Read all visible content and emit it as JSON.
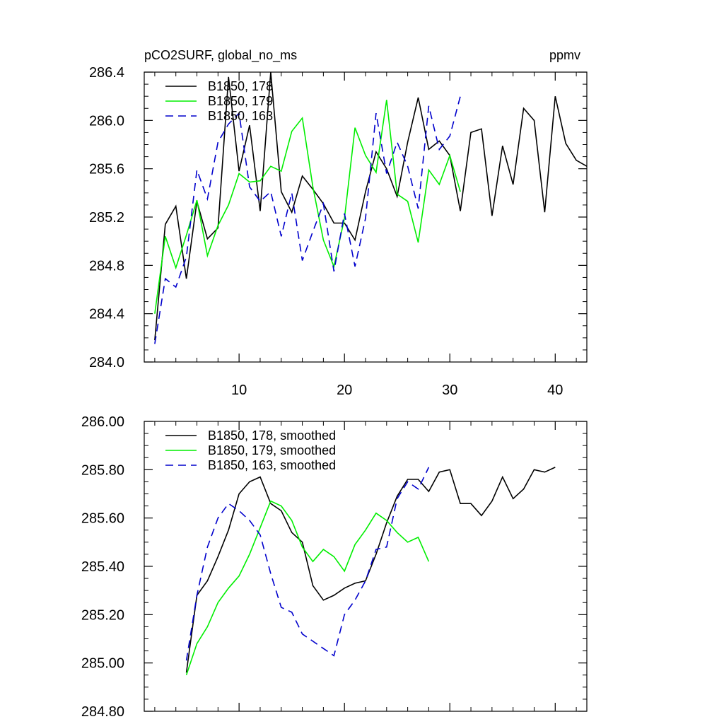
{
  "chart_data": [
    {
      "type": "line",
      "title": "pCO2SURF, global_no_ms",
      "units": "ppmv",
      "xlabel": "",
      "ylabel": "",
      "xlim": [
        1,
        43
      ],
      "ylim": [
        284.0,
        286.4
      ],
      "x_ticks": [
        10,
        20,
        30,
        40
      ],
      "x_tick_labels": [
        "10",
        "20",
        "30",
        "40"
      ],
      "y_ticks": [
        284.0,
        284.4,
        284.8,
        285.2,
        285.6,
        286.0,
        286.4
      ],
      "y_tick_labels": [
        "284.0",
        "284.4",
        "284.8",
        "285.2",
        "285.6",
        "286.0",
        "286.4"
      ],
      "legend_position": "top-left",
      "series": [
        {
          "name": "B1850, 178",
          "color": "#000000",
          "dash": "solid",
          "x": [
            2,
            3,
            4,
            5,
            6,
            7,
            8,
            9,
            10,
            11,
            12,
            13,
            14,
            15,
            16,
            17,
            18,
            19,
            20,
            21,
            22,
            23,
            24,
            25,
            26,
            27,
            28,
            29,
            30,
            31,
            32,
            33,
            34,
            35,
            36,
            37,
            38,
            39,
            40,
            41,
            42,
            43
          ],
          "values": [
            284.18,
            285.14,
            285.29,
            284.69,
            285.33,
            285.02,
            285.11,
            286.36,
            285.58,
            285.96,
            285.25,
            286.4,
            285.41,
            285.24,
            285.54,
            285.43,
            285.31,
            285.15,
            285.15,
            285.01,
            285.41,
            285.74,
            285.6,
            285.37,
            285.82,
            286.19,
            285.76,
            285.83,
            285.71,
            285.25,
            285.9,
            285.93,
            285.21,
            285.79,
            285.47,
            286.1,
            286.0,
            285.24,
            286.2,
            285.81,
            285.67,
            285.62
          ]
        },
        {
          "name": "B1850, 179",
          "color": "#00ee00",
          "dash": "solid",
          "x": [
            2,
            3,
            4,
            5,
            6,
            7,
            8,
            9,
            10,
            11,
            12,
            13,
            14,
            15,
            16,
            17,
            18,
            19,
            20,
            21,
            22,
            23,
            24,
            25,
            26,
            27,
            28,
            29,
            30,
            31
          ],
          "values": [
            284.4,
            285.04,
            284.78,
            285.05,
            285.34,
            284.88,
            285.13,
            285.3,
            285.56,
            285.49,
            285.5,
            285.62,
            285.58,
            285.91,
            286.02,
            285.45,
            285.01,
            284.79,
            285.19,
            285.94,
            285.71,
            285.57,
            286.17,
            285.39,
            285.33,
            284.99,
            285.59,
            285.47,
            285.71,
            285.41
          ]
        },
        {
          "name": "B1850, 163",
          "color": "#0000cc",
          "dash": "dashed",
          "x": [
            2,
            3,
            4,
            5,
            6,
            7,
            8,
            9,
            10,
            11,
            12,
            13,
            14,
            15,
            16,
            17,
            18,
            19,
            20,
            21,
            22,
            23,
            24,
            25,
            26,
            27,
            28,
            29,
            30,
            31
          ],
          "values": [
            284.15,
            284.69,
            284.62,
            284.87,
            285.59,
            285.35,
            285.82,
            285.97,
            286.06,
            285.45,
            285.33,
            285.41,
            285.04,
            285.4,
            284.84,
            285.08,
            285.31,
            284.75,
            285.23,
            284.79,
            285.19,
            286.06,
            285.56,
            285.82,
            285.62,
            285.27,
            286.12,
            285.76,
            285.87,
            286.2
          ]
        }
      ]
    },
    {
      "type": "line",
      "title": "",
      "xlabel": "",
      "ylabel": "",
      "xlim": [
        1,
        43
      ],
      "ylim": [
        284.8,
        286.0
      ],
      "x_ticks": [
        10,
        20,
        30,
        40
      ],
      "y_ticks": [
        284.8,
        285.0,
        285.2,
        285.4,
        285.6,
        285.8,
        286.0
      ],
      "y_tick_labels": [
        "284.80",
        "285.00",
        "285.20",
        "285.40",
        "285.60",
        "285.80",
        "286.00"
      ],
      "legend_position": "top-left",
      "series": [
        {
          "name": "B1850, 178, smoothed",
          "color": "#000000",
          "dash": "solid",
          "x": [
            5,
            6,
            7,
            8,
            9,
            10,
            11,
            12,
            13,
            14,
            15,
            16,
            17,
            18,
            19,
            20,
            21,
            22,
            23,
            24,
            25,
            26,
            27,
            28,
            29,
            30,
            31,
            32,
            33,
            34,
            35,
            36,
            37,
            38,
            39,
            40
          ],
          "values": [
            284.96,
            285.28,
            285.34,
            285.44,
            285.55,
            285.7,
            285.75,
            285.77,
            285.66,
            285.63,
            285.54,
            285.5,
            285.32,
            285.26,
            285.28,
            285.31,
            285.33,
            285.34,
            285.45,
            285.58,
            285.69,
            285.76,
            285.76,
            285.71,
            285.79,
            285.8,
            285.66,
            285.66,
            285.61,
            285.67,
            285.77,
            285.68,
            285.72,
            285.8,
            285.79,
            285.81
          ]
        },
        {
          "name": "B1850, 179, smoothed",
          "color": "#00ee00",
          "dash": "solid",
          "x": [
            5,
            6,
            7,
            8,
            9,
            10,
            11,
            12,
            13,
            14,
            15,
            16,
            17,
            18,
            19,
            20,
            21,
            22,
            23,
            24,
            25,
            26,
            27,
            28
          ],
          "values": [
            284.95,
            285.08,
            285.15,
            285.25,
            285.31,
            285.36,
            285.45,
            285.56,
            285.67,
            285.65,
            285.59,
            285.48,
            285.42,
            285.47,
            285.44,
            285.38,
            285.49,
            285.55,
            285.62,
            285.59,
            285.54,
            285.5,
            285.52,
            285.42
          ]
        },
        {
          "name": "B1850, 163, smoothed",
          "color": "#0000cc",
          "dash": "dashed",
          "x": [
            5,
            6,
            7,
            8,
            9,
            10,
            11,
            12,
            13,
            14,
            15,
            16,
            17,
            18,
            19,
            20,
            21,
            22,
            23,
            24,
            25,
            26,
            27,
            28
          ],
          "values": [
            285.01,
            285.28,
            285.48,
            285.6,
            285.66,
            285.63,
            285.59,
            285.53,
            285.37,
            285.23,
            285.21,
            285.12,
            285.09,
            285.06,
            285.03,
            285.2,
            285.26,
            285.34,
            285.47,
            285.48,
            285.68,
            285.75,
            285.72,
            285.81
          ]
        }
      ]
    }
  ]
}
